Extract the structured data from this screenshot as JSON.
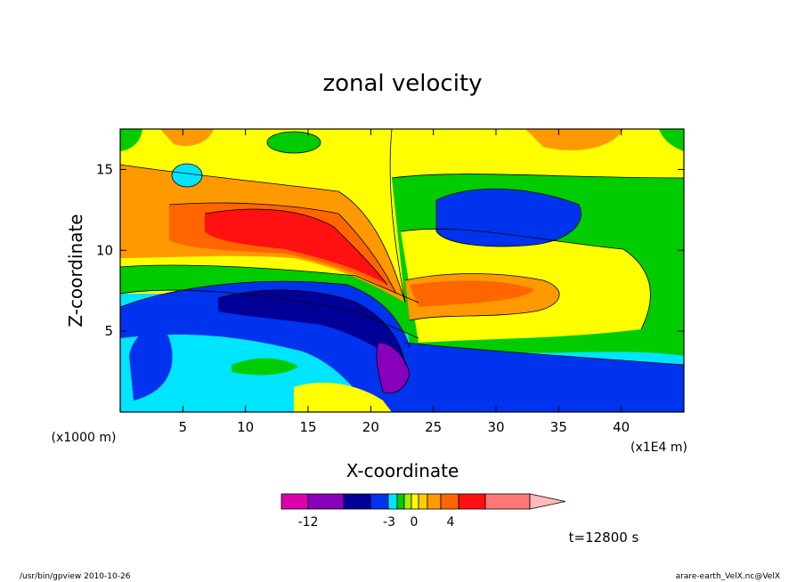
{
  "chart_data": {
    "type": "heatmap",
    "title": "zonal velocity",
    "xlabel": "X-coordinate",
    "ylabel": "Z-coordinate",
    "x_unit_left": "(x1000 m)",
    "x_unit_right": "(x1E4 m)",
    "xlim": [
      0,
      45
    ],
    "ylim": [
      0,
      17.5
    ],
    "x_ticks": [
      "5",
      "10",
      "15",
      "20",
      "25",
      "30",
      "35",
      "40"
    ],
    "y_ticks": [
      "5",
      "10",
      "15"
    ],
    "x_tick_values": [
      5,
      10,
      15,
      20,
      25,
      30,
      35,
      40
    ],
    "y_tick_values": [
      5,
      10,
      15
    ],
    "colorbar": {
      "labels": [
        "-12",
        "-3",
        "0",
        "4"
      ],
      "label_values": [
        -12,
        -3,
        0,
        4
      ],
      "colors": [
        "#dd00aa",
        "#8800bb",
        "#000099",
        "#0033ee",
        "#00e5ff",
        "#00cc00",
        "#aaee00",
        "#ffff00",
        "#ffcc00",
        "#ff9900",
        "#ff6600",
        "#ff1111",
        "#ff7777",
        "#ffbbbb"
      ]
    },
    "annotation": "t=12800 s"
  },
  "footer": {
    "left": "/usr/bin/gpview   2010-10-26",
    "right": "arare-earth_VelX.nc@VelX"
  }
}
